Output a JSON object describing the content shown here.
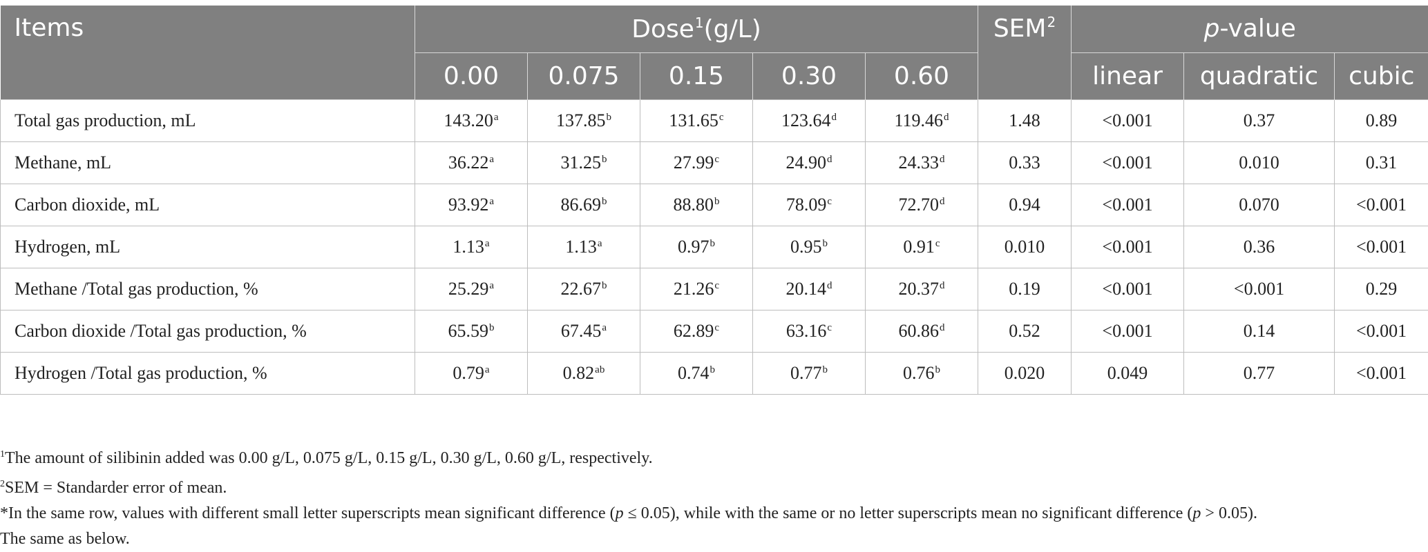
{
  "table": {
    "header": {
      "items": "Items",
      "dose": "Dose",
      "dose_sup": "1",
      "dose_unit": "(g/L)",
      "sem": "SEM",
      "sem_sup": "2",
      "pvalue_p": "p",
      "pvalue_rest": "-value",
      "doses": [
        "0.00",
        "0.075",
        "0.15",
        "0.30",
        "0.60"
      ],
      "pcols": [
        "linear",
        "quadratic",
        "cubic"
      ]
    },
    "rows": [
      {
        "label": "Total gas production, mL",
        "values": [
          {
            "v": "143.20",
            "s": "a"
          },
          {
            "v": "137.85",
            "s": "b"
          },
          {
            "v": "131.65",
            "s": "c"
          },
          {
            "v": "123.64",
            "s": "d"
          },
          {
            "v": "119.46",
            "s": "d"
          }
        ],
        "sem": "1.48",
        "linear": "<0.001",
        "quadratic": "0.37",
        "cubic": "0.89"
      },
      {
        "label": "Methane, mL",
        "values": [
          {
            "v": "36.22",
            "s": "a"
          },
          {
            "v": "31.25",
            "s": "b"
          },
          {
            "v": "27.99",
            "s": "c"
          },
          {
            "v": "24.90",
            "s": "d"
          },
          {
            "v": "24.33",
            "s": "d"
          }
        ],
        "sem": "0.33",
        "linear": "<0.001",
        "quadratic": "0.010",
        "cubic": "0.31"
      },
      {
        "label": "Carbon dioxide, mL",
        "values": [
          {
            "v": "93.92",
            "s": "a"
          },
          {
            "v": "86.69",
            "s": "b"
          },
          {
            "v": "88.80",
            "s": "b"
          },
          {
            "v": "78.09",
            "s": "c"
          },
          {
            "v": "72.70",
            "s": "d"
          }
        ],
        "sem": "0.94",
        "linear": "<0.001",
        "quadratic": "0.070",
        "cubic": "<0.001"
      },
      {
        "label": "Hydrogen, mL",
        "values": [
          {
            "v": "1.13",
            "s": "a"
          },
          {
            "v": "1.13",
            "s": "a"
          },
          {
            "v": "0.97",
            "s": "b"
          },
          {
            "v": "0.95",
            "s": "b"
          },
          {
            "v": "0.91",
            "s": "c"
          }
        ],
        "sem": "0.010",
        "linear": "<0.001",
        "quadratic": "0.36",
        "cubic": "<0.001"
      },
      {
        "label": "Methane /Total gas production, %",
        "values": [
          {
            "v": "25.29",
            "s": "a"
          },
          {
            "v": "22.67",
            "s": "b"
          },
          {
            "v": "21.26",
            "s": "c"
          },
          {
            "v": "20.14",
            "s": "d"
          },
          {
            "v": "20.37",
            "s": "d"
          }
        ],
        "sem": "0.19",
        "linear": "<0.001",
        "quadratic": "<0.001",
        "cubic": "0.29"
      },
      {
        "label": "Carbon dioxide /Total gas production, %",
        "values": [
          {
            "v": "65.59",
            "s": "b"
          },
          {
            "v": "67.45",
            "s": "a"
          },
          {
            "v": "62.89",
            "s": "c"
          },
          {
            "v": "63.16",
            "s": "c"
          },
          {
            "v": "60.86",
            "s": "d"
          }
        ],
        "sem": "0.52",
        "linear": "<0.001",
        "quadratic": "0.14",
        "cubic": "<0.001"
      },
      {
        "label": "Hydrogen /Total gas production, %",
        "values": [
          {
            "v": "0.79",
            "s": "a"
          },
          {
            "v": "0.82",
            "s": "ab"
          },
          {
            "v": "0.74",
            "s": "b"
          },
          {
            "v": "0.77",
            "s": "b"
          },
          {
            "v": "0.76",
            "s": "b"
          }
        ],
        "sem": "0.020",
        "linear": "0.049",
        "quadratic": "0.77",
        "cubic": "<0.001"
      }
    ]
  },
  "footnotes": {
    "n1_sup": "1",
    "n1_text": "The amount of silibinin added was 0.00 g/L, 0.075 g/L, 0.15 g/L, 0.30 g/L, 0.60 g/L, respectively.",
    "n2_sup": "2",
    "n2_text": "SEM = Standarder error of mean.",
    "n3_a": "*In the same row, values with different small letter superscripts mean significant difference (",
    "n3_p1": "p",
    "n3_b": " ≤ 0.05), while with the same or no letter superscripts mean no significant difference (",
    "n3_p2": "p",
    "n3_c": " > 0.05).",
    "n4_text": "The same as below."
  },
  "colors": {
    "header_bg": "#808080",
    "header_text": "#ffffff",
    "grid": "#bdbdbd"
  }
}
